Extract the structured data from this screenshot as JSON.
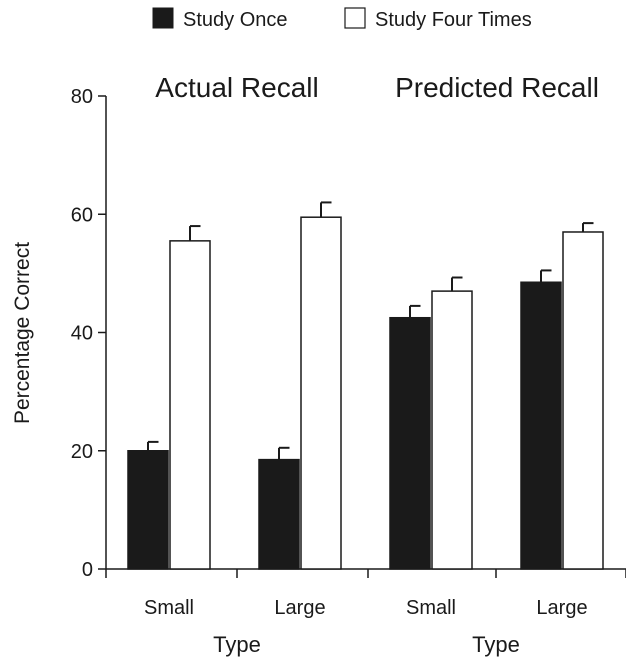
{
  "chart_data": {
    "type": "bar",
    "ylabel": "Percentage Correct",
    "ylim": [
      0,
      80
    ],
    "yticks": [
      0,
      20,
      40,
      60,
      80
    ],
    "legend": {
      "placement": "top-center",
      "entries": [
        {
          "name": "Study Once",
          "color": "#1a1a1a"
        },
        {
          "name": "Study Four Times",
          "color": "#ffffff"
        }
      ]
    },
    "series_names": [
      "Study Once",
      "Study Four Times"
    ],
    "panels": [
      {
        "title": "Actual Recall",
        "xlabel": "Type",
        "categories": [
          "Small",
          "Large"
        ],
        "series": [
          {
            "name": "Study Once",
            "values": [
              20,
              18.5
            ],
            "errors": [
              1.5,
              2
            ]
          },
          {
            "name": "Study Four Times",
            "values": [
              55.5,
              59.5
            ],
            "errors": [
              2.5,
              2.5
            ]
          }
        ]
      },
      {
        "title": "Predicted Recall",
        "xlabel": "Type",
        "categories": [
          "Small",
          "Large"
        ],
        "series": [
          {
            "name": "Study Once",
            "values": [
              42.5,
              48.5
            ],
            "errors": [
              2,
              2
            ]
          },
          {
            "name": "Study Four Times",
            "values": [
              47,
              57
            ],
            "errors": [
              2.3,
              1.5
            ]
          }
        ]
      }
    ],
    "grid": false
  }
}
